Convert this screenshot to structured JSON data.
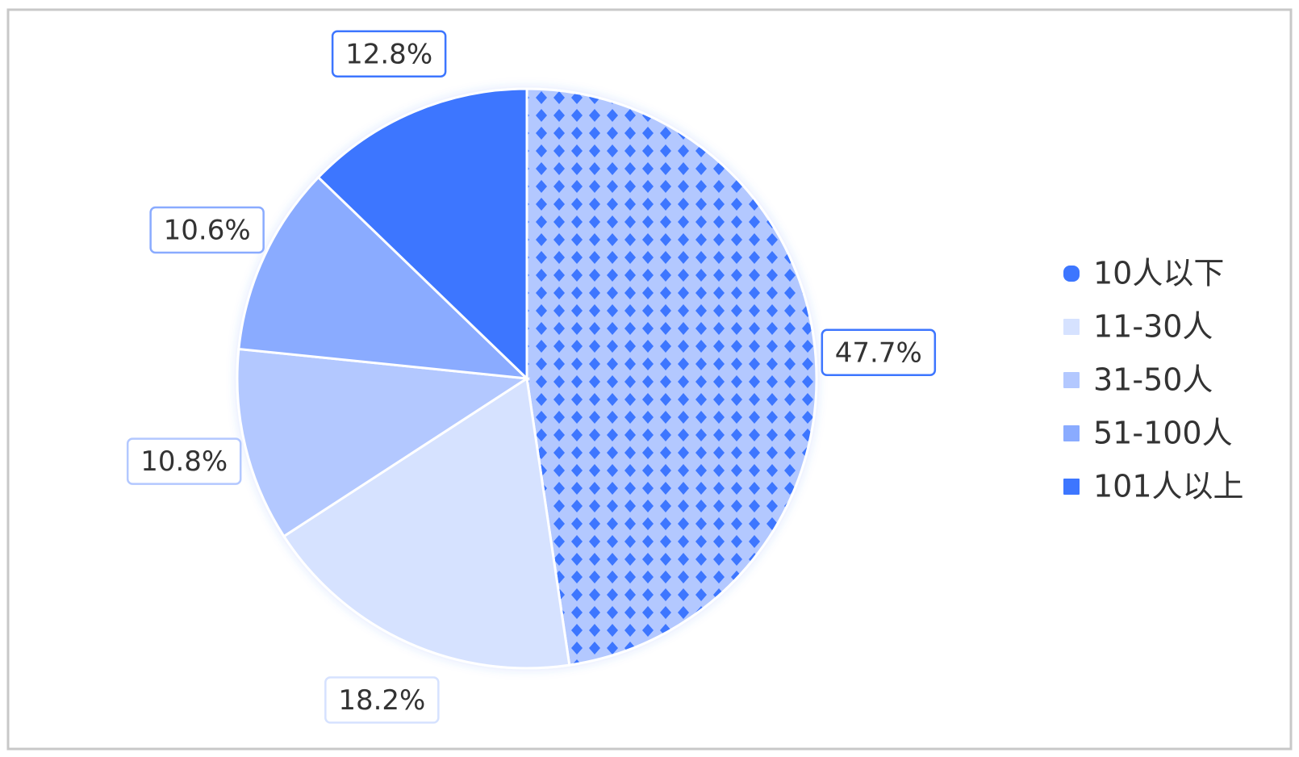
{
  "chart_data": {
    "type": "pie",
    "categories": [
      "10人以下",
      "11-30人",
      "31-50人",
      "51-100人",
      "101人以上"
    ],
    "values": [
      47.7,
      18.2,
      10.8,
      10.6,
      12.8
    ],
    "value_labels": [
      "47.7%",
      "18.2%",
      "10.8%",
      "10.6%",
      "12.8%"
    ],
    "colors": [
      "#3d76ff",
      "#d6e2ff",
      "#b3c8ff",
      "#8aabff",
      "#3d76ff"
    ],
    "patterned": [
      true,
      false,
      false,
      false,
      false
    ],
    "legend": "right"
  }
}
